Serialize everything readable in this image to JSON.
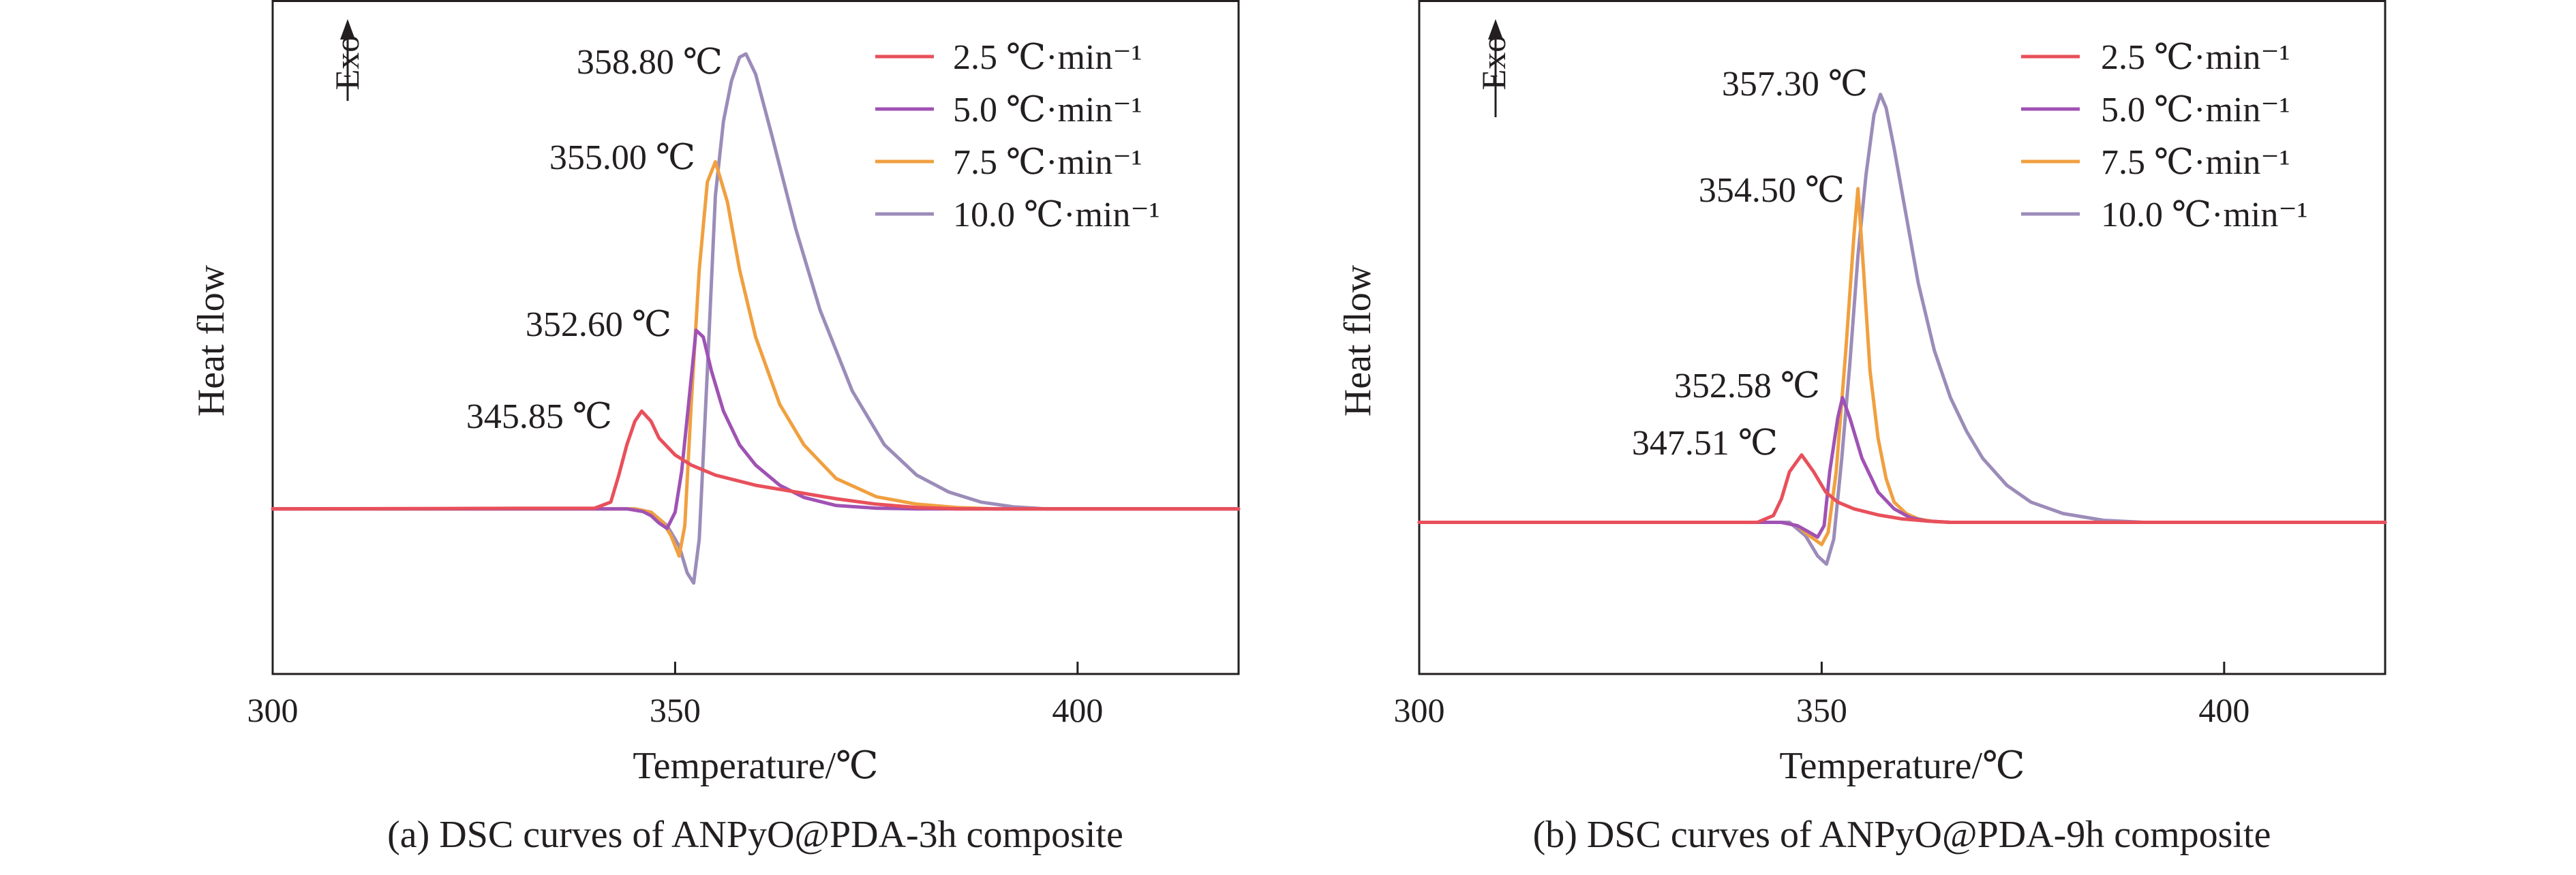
{
  "colors": {
    "2.5": "#e8505b",
    "5.0": "#a052b4",
    "7.5": "#f0a040",
    "10.0": "#9c8cb9",
    "axis": "#231f20"
  },
  "chart_data": [
    {
      "type": "line",
      "caption": "(a) DSC curves of ANPyO@PDA-3h composite",
      "xlabel": "Temperature/℃",
      "ylabel": "Heat flow",
      "exo_label": "Exo",
      "xlim": [
        300,
        420
      ],
      "ylim": [
        0,
        100
      ],
      "xticks": [
        300,
        350,
        400
      ],
      "grid": false,
      "legend_position": "top-right",
      "series": [
        {
          "name": "2.5 ℃·min⁻¹",
          "color_key": "2.5",
          "x": [
            300,
            340,
            342,
            343,
            344,
            345,
            345.85,
            347,
            348,
            350,
            352,
            355,
            360,
            365,
            370,
            375,
            380,
            385,
            400,
            420
          ],
          "y": [
            24.5,
            24.6,
            25.5,
            29.5,
            34,
            37.5,
            39,
            37.5,
            35,
            32.5,
            31,
            29.5,
            28,
            27,
            26,
            25.2,
            24.7,
            24.5,
            24.5,
            24.5
          ]
        },
        {
          "name": "5.0 ℃·min⁻¹",
          "color_key": "5.0",
          "x": [
            300,
            344,
            346,
            347,
            348,
            349,
            350,
            350.8,
            351.5,
            352.6,
            353.5,
            354.5,
            356,
            358,
            360,
            363,
            366,
            370,
            375,
            380,
            390,
            420
          ],
          "y": [
            24.5,
            24.5,
            24.1,
            23.5,
            22.4,
            21.6,
            24,
            30,
            38,
            51,
            50,
            45,
            39,
            34,
            31,
            28,
            26.2,
            25,
            24.6,
            24.5,
            24.5,
            24.5
          ]
        },
        {
          "name": "7.5 ℃·min⁻¹",
          "color_key": "7.5",
          "x": [
            300,
            345,
            347,
            348.5,
            349.5,
            350.5,
            351.2,
            352,
            353,
            354,
            355,
            356.5,
            358,
            360,
            363,
            366,
            370,
            375,
            380,
            385,
            390,
            395,
            420
          ],
          "y": [
            24.5,
            24.5,
            24,
            22.5,
            20.5,
            17.5,
            22,
            40,
            60,
            73,
            76,
            70,
            60,
            50,
            40,
            34,
            29,
            26.3,
            25.2,
            24.7,
            24.5,
            24.5,
            24.5
          ]
        },
        {
          "name": "10.0 ℃·min⁻¹",
          "color_key": "10.0",
          "x": [
            300,
            345,
            347,
            349,
            350.5,
            351.5,
            352.3,
            353,
            354,
            355,
            356,
            357,
            358,
            358.8,
            360,
            362,
            365,
            368,
            372,
            376,
            380,
            384,
            388,
            392,
            396,
            400,
            420
          ],
          "y": [
            24.5,
            24.5,
            24,
            22,
            19,
            15,
            13.5,
            20,
            45,
            71,
            82,
            88,
            91.5,
            92,
            89,
            80,
            66,
            54,
            42,
            34,
            29.5,
            27,
            25.5,
            24.8,
            24.5,
            24.5,
            24.5
          ]
        }
      ],
      "annotations": [
        {
          "text": "358.80 ℃",
          "color_key": "10.0"
        },
        {
          "text": "355.00 ℃",
          "color_key": "7.5"
        },
        {
          "text": "352.60 ℃",
          "color_key": "5.0"
        },
        {
          "text": "345.85 ℃",
          "color_key": "2.5"
        }
      ]
    },
    {
      "type": "line",
      "caption": "(b) DSC curves of ANPyO@PDA-9h composite",
      "xlabel": "Temperature/℃",
      "ylabel": "Heat flow",
      "exo_label": "Exo",
      "xlim": [
        300,
        420
      ],
      "ylim": [
        0,
        100
      ],
      "xticks": [
        300,
        350,
        400
      ],
      "grid": false,
      "legend_position": "top-right",
      "series": [
        {
          "name": "2.5 ℃·min⁻¹",
          "color_key": "2.5",
          "x": [
            300,
            342,
            344,
            345,
            346,
            347.51,
            349,
            350.5,
            352,
            354,
            357,
            360,
            363,
            366,
            370,
            420
          ],
          "y": [
            22.5,
            22.5,
            23.5,
            26,
            30,
            32.5,
            30,
            27,
            25.5,
            24.5,
            23.6,
            23,
            22.7,
            22.5,
            22.5,
            22.5
          ]
        },
        {
          "name": "5.0 ℃·min⁻¹",
          "color_key": "5.0",
          "x": [
            300,
            345,
            347,
            348.5,
            349.5,
            350.3,
            351,
            352,
            352.58,
            353.5,
            355,
            357,
            359,
            361,
            363,
            366,
            370,
            420
          ],
          "y": [
            22.5,
            22.5,
            22,
            21,
            20.3,
            22,
            30,
            38,
            41,
            38,
            32,
            27,
            24.5,
            23.2,
            22.7,
            22.5,
            22.5,
            22.5
          ]
        },
        {
          "name": "7.5 ℃·min⁻¹",
          "color_key": "7.5",
          "x": [
            300,
            345,
            347,
            348.5,
            350,
            350.8,
            351.8,
            353,
            354,
            354.5,
            355.2,
            356,
            357,
            358,
            359,
            360.5,
            362,
            364,
            366,
            368,
            420
          ],
          "y": [
            22.5,
            22.5,
            22,
            20.5,
            19.2,
            21,
            30,
            48,
            65,
            72,
            60,
            45,
            35,
            29,
            25.5,
            23.8,
            23,
            22.6,
            22.5,
            22.5,
            22.5
          ]
        },
        {
          "name": "10.0 ℃·min⁻¹",
          "color_key": "10.0",
          "x": [
            300,
            346,
            348,
            349.5,
            350.6,
            351.5,
            352.5,
            353.5,
            354.5,
            355.5,
            356.5,
            357.3,
            358,
            359,
            360.5,
            362,
            364,
            366,
            368,
            370,
            373,
            376,
            380,
            385,
            390,
            420
          ],
          "y": [
            22.5,
            22.5,
            20.5,
            17.5,
            16.3,
            20,
            32,
            46,
            62,
            74,
            83,
            86,
            84,
            78,
            68,
            58,
            48,
            41,
            36,
            32,
            28,
            25.5,
            23.8,
            22.8,
            22.5,
            22.5
          ]
        }
      ],
      "annotations": [
        {
          "text": "357.30 ℃",
          "color_key": "10.0"
        },
        {
          "text": "354.50 ℃",
          "color_key": "7.5"
        },
        {
          "text": "352.58 ℃",
          "color_key": "5.0"
        },
        {
          "text": "347.51 ℃",
          "color_key": "2.5"
        }
      ]
    }
  ]
}
